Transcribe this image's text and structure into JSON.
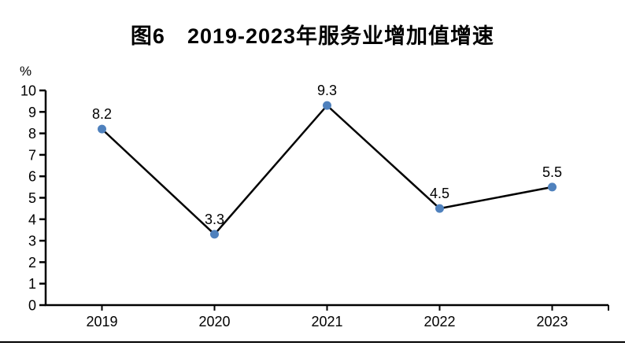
{
  "figure": {
    "title": "图6　2019-2023年服务业增加值增速"
  },
  "chart_data": {
    "type": "line",
    "title": "图6　2019-2023年服务业增加值增速",
    "categories": [
      "2019",
      "2020",
      "2021",
      "2022",
      "2023"
    ],
    "series": [
      {
        "name": "服务业增加值增速",
        "values": [
          8.2,
          3.3,
          9.3,
          4.5,
          5.5
        ]
      }
    ],
    "data_labels": [
      "8.2",
      "3.3",
      "9.3",
      "4.5",
      "5.5"
    ],
    "xlabel": "",
    "ylabel": "%",
    "ylim": [
      0,
      10
    ],
    "yticks": [
      0,
      1,
      2,
      3,
      4,
      5,
      6,
      7,
      8,
      9,
      10
    ],
    "grid": false,
    "legend": "none",
    "colors": {
      "line": "#000000",
      "marker": "#4f81bd",
      "axis": "#000000",
      "text": "#000000"
    }
  }
}
